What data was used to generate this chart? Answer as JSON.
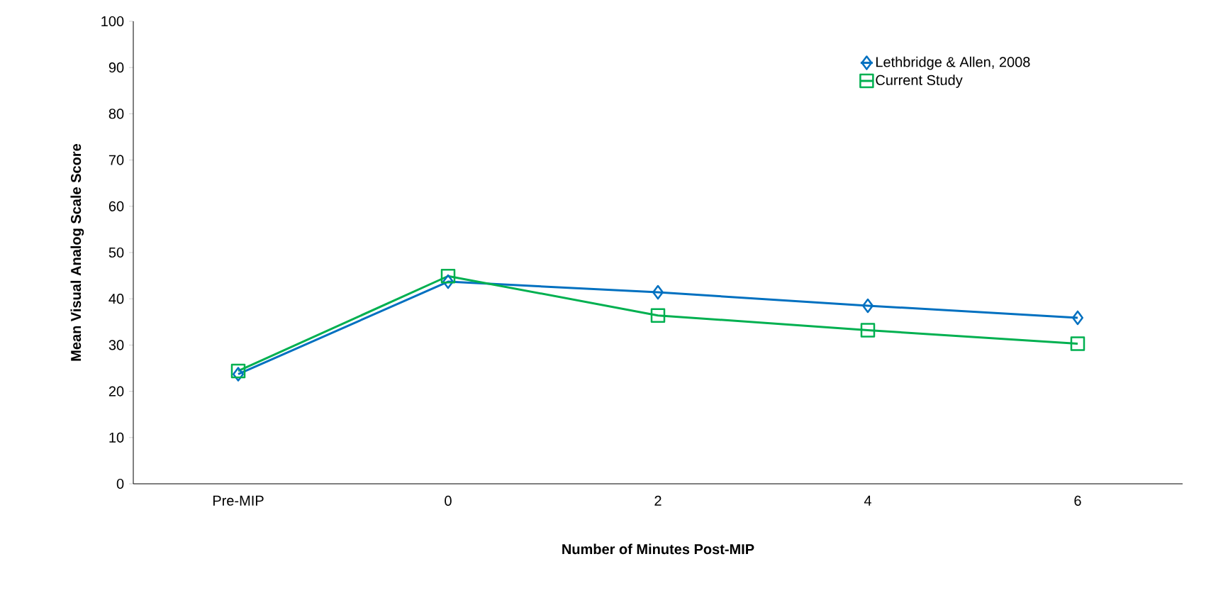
{
  "chart_data": {
    "type": "line",
    "xlabel": "Number of Minutes Post-MIP",
    "ylabel": "Mean Visual Analog Scale Score",
    "categories": [
      "Pre-MIP",
      "0",
      "2",
      "4",
      "6"
    ],
    "series": [
      {
        "name": "Lethbridge & Allen, 2008",
        "color": "#0070c0",
        "marker": "diamond",
        "values": [
          23.7,
          43.7,
          41.4,
          38.5,
          35.9
        ]
      },
      {
        "name": "Current Study",
        "color": "#00b050",
        "marker": "square",
        "values": [
          24.4,
          44.9,
          36.4,
          33.2,
          30.3
        ]
      }
    ],
    "ylim": [
      0,
      100
    ],
    "yticks": [
      0,
      10,
      20,
      30,
      40,
      50,
      60,
      70,
      80,
      90,
      100
    ],
    "grid": false,
    "legend": "top right",
    "line_style": "solid"
  }
}
